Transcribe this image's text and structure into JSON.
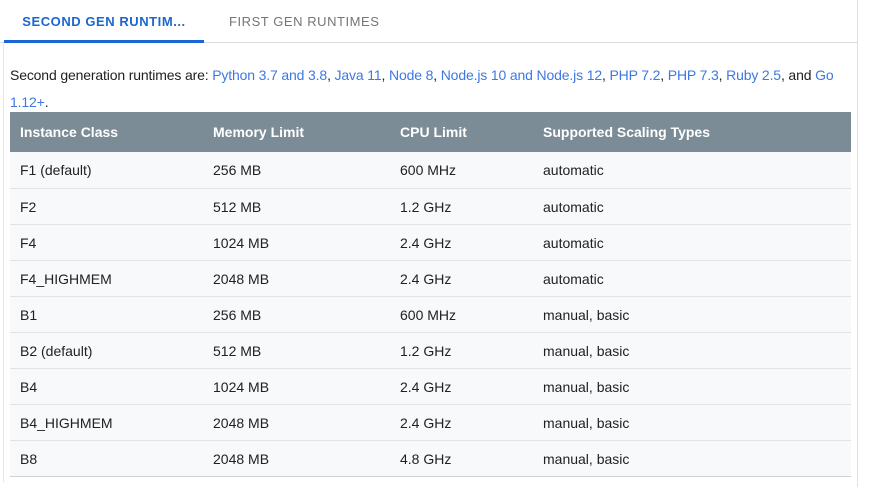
{
  "tabs": [
    {
      "label": "SECOND GEN RUNTIM...",
      "active": true
    },
    {
      "label": "FIRST GEN RUNTIMES",
      "active": false
    }
  ],
  "intro": {
    "segments": [
      {
        "text": "Second generation runtimes are: ",
        "link": false
      },
      {
        "text": "Python 3.7 and 3.8",
        "link": true
      },
      {
        "text": ", ",
        "link": false
      },
      {
        "text": "Java 11",
        "link": true
      },
      {
        "text": ", ",
        "link": false
      },
      {
        "text": "Node 8",
        "link": true
      },
      {
        "text": ", ",
        "link": false
      },
      {
        "text": "Node.js 10 and Node.js 12",
        "link": true
      },
      {
        "text": ", ",
        "link": false
      },
      {
        "text": "PHP 7.2",
        "link": true
      },
      {
        "text": ", ",
        "link": false
      },
      {
        "text": "PHP 7.3",
        "link": true
      },
      {
        "text": ", ",
        "link": false
      },
      {
        "text": "Ruby 2.5",
        "link": true
      },
      {
        "text": ", and ",
        "link": false
      },
      {
        "text": "Go",
        "link": true
      },
      {
        "br": true
      },
      {
        "text": "1.12+",
        "link": true
      },
      {
        "text": ".",
        "link": false
      }
    ]
  },
  "table": {
    "columns": [
      "Instance Class",
      "Memory Limit",
      "CPU Limit",
      "Supported Scaling Types"
    ],
    "rows": [
      [
        "F1 (default)",
        "256 MB",
        "600 MHz",
        "automatic"
      ],
      [
        "F2",
        "512 MB",
        "1.2 GHz",
        "automatic"
      ],
      [
        "F4",
        "1024 MB",
        "2.4 GHz",
        "automatic"
      ],
      [
        "F4_HIGHMEM",
        "2048 MB",
        "2.4 GHz",
        "automatic"
      ],
      [
        "B1",
        "256 MB",
        "600 MHz",
        "manual, basic"
      ],
      [
        "B2 (default)",
        "512 MB",
        "1.2 GHz",
        "manual, basic"
      ],
      [
        "B4",
        "1024 MB",
        "2.4 GHz",
        "manual, basic"
      ],
      [
        "B4_HIGHMEM",
        "2048 MB",
        "2.4 GHz",
        "manual, basic"
      ],
      [
        "B8",
        "2048 MB",
        "4.8 GHz",
        "manual, basic"
      ]
    ]
  },
  "colors": {
    "active_tab": "#1967d2",
    "inactive_tab": "#757575",
    "link": "#3d78e3",
    "table_header_bg": "#7b8c96",
    "table_header_text": "#ffffff",
    "row_bg": "#f8f9fa",
    "row_separator": "#e1e3e6",
    "page_border": "#e0e0e0"
  }
}
